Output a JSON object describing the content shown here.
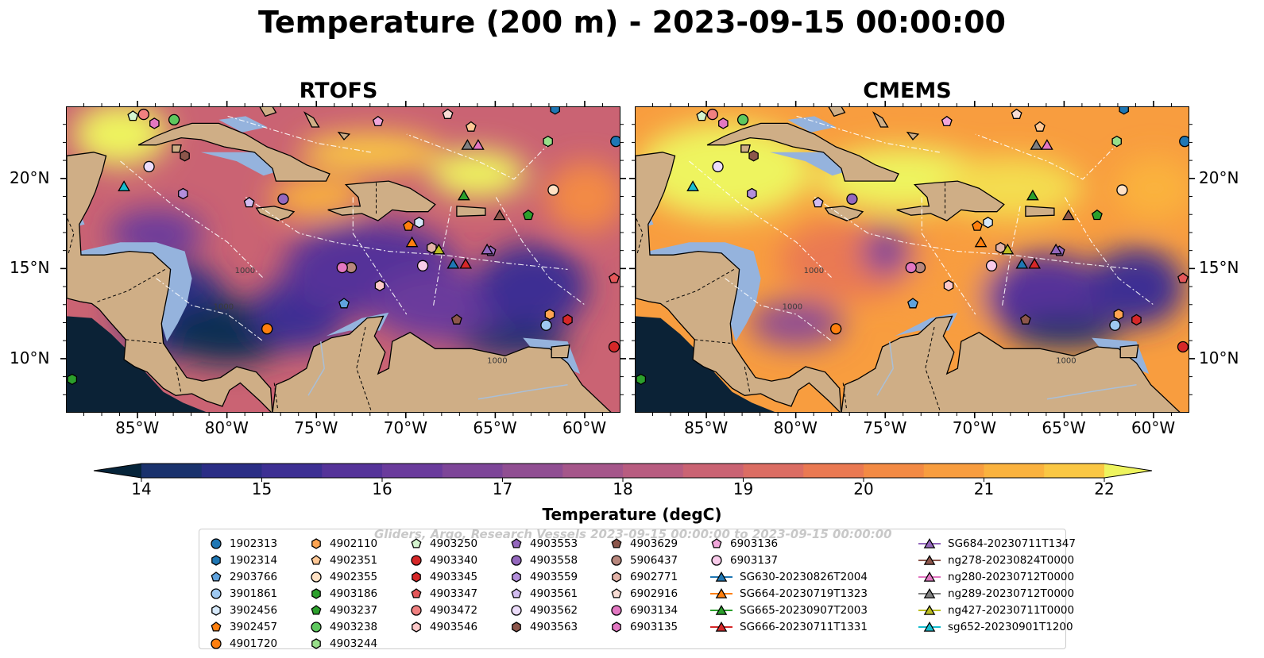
{
  "title": "Temperature (200 m) - 2023-09-15 00:00:00",
  "panels": [
    {
      "title": "RTOFS"
    },
    {
      "title": "CMEMS"
    }
  ],
  "axes": {
    "lon_ticks": [
      "85°W",
      "80°W",
      "75°W",
      "70°W",
      "65°W",
      "60°W"
    ],
    "lat_ticks": [
      "20°N",
      "15°N",
      "10°N"
    ]
  },
  "contour_labels": [
    "1000",
    "1000",
    "1000"
  ],
  "colorbar": {
    "label": "Temperature (degC)",
    "ticks": [
      "14",
      "15",
      "16",
      "17",
      "18",
      "19",
      "20",
      "21",
      "22"
    ],
    "vmin": 14,
    "vmax": 22,
    "colors": [
      "#06243a",
      "#0f2d52",
      "#1a326d",
      "#2a2d85",
      "#3d2f93",
      "#553399",
      "#6a3b9c",
      "#7d4598",
      "#904e92",
      "#a5568a",
      "#b85c80",
      "#ca6373",
      "#db6d63",
      "#ea7952",
      "#f38a44",
      "#f89d3f",
      "#fab23e",
      "#fac744",
      "#f4dd4f",
      "#eef45e"
    ]
  },
  "legend": {
    "watermark": "Gliders, Argo, Research Vessels 2023-09-15 00:00:00 to 2023-09-15 00:00:00",
    "items": [
      {
        "label": "1902313",
        "marker": "circle",
        "color": "#1f77b4"
      },
      {
        "label": "1902314",
        "marker": "hexagon",
        "color": "#1f77b4"
      },
      {
        "label": "2903766",
        "marker": "pentagon",
        "color": "#5fa2dd"
      },
      {
        "label": "3901861",
        "marker": "circle",
        "color": "#9ec9f2"
      },
      {
        "label": "3902456",
        "marker": "hexagon",
        "color": "#d6e9fb"
      },
      {
        "label": "3902457",
        "marker": "pentagon",
        "color": "#ff7f0e"
      },
      {
        "label": "4901720",
        "marker": "circle",
        "color": "#ff7f0e"
      },
      {
        "label": "4902110",
        "marker": "hexagon",
        "color": "#ffa552"
      },
      {
        "label": "4902351",
        "marker": "pentagon",
        "color": "#ffc896"
      },
      {
        "label": "4902355",
        "marker": "circle",
        "color": "#ffe1c4"
      },
      {
        "label": "4903186",
        "marker": "hexagon",
        "color": "#2ca02c"
      },
      {
        "label": "4903237",
        "marker": "pentagon",
        "color": "#2ca02c"
      },
      {
        "label": "4903238",
        "marker": "circle",
        "color": "#5ec85e"
      },
      {
        "label": "4903244",
        "marker": "hexagon",
        "color": "#98df8a"
      },
      {
        "label": "4903250",
        "marker": "pentagon",
        "color": "#d4f5cf"
      },
      {
        "label": "4903340",
        "marker": "circle",
        "color": "#d62728"
      },
      {
        "label": "4903345",
        "marker": "hexagon",
        "color": "#d62728"
      },
      {
        "label": "4903347",
        "marker": "pentagon",
        "color": "#e5575a"
      },
      {
        "label": "4903472",
        "marker": "circle",
        "color": "#f08080"
      },
      {
        "label": "4903546",
        "marker": "hexagon",
        "color": "#fcc8c8"
      },
      {
        "label": "4903553",
        "marker": "pentagon",
        "color": "#9467bd"
      },
      {
        "label": "4903558",
        "marker": "circle",
        "color": "#9467bd"
      },
      {
        "label": "4903559",
        "marker": "hexagon",
        "color": "#b38edb"
      },
      {
        "label": "4903561",
        "marker": "pentagon",
        "color": "#d2bcf0"
      },
      {
        "label": "4903562",
        "marker": "circle",
        "color": "#ecdcfa"
      },
      {
        "label": "4903563",
        "marker": "hexagon",
        "color": "#8c564b"
      },
      {
        "label": "4903629",
        "marker": "pentagon",
        "color": "#8c564b"
      },
      {
        "label": "5906437",
        "marker": "circle",
        "color": "#b8877d"
      },
      {
        "label": "6902771",
        "marker": "hexagon",
        "color": "#e3b3a8"
      },
      {
        "label": "6902916",
        "marker": "pentagon",
        "color": "#f8dcd4"
      },
      {
        "label": "6903134",
        "marker": "circle",
        "color": "#e377c2"
      },
      {
        "label": "6903135",
        "marker": "hexagon",
        "color": "#e377c2"
      },
      {
        "label": "6903136",
        "marker": "pentagon",
        "color": "#f0a6da"
      },
      {
        "label": "6903137",
        "marker": "circle",
        "color": "#f9cbea"
      },
      {
        "label": "SG630-20230826T2004",
        "marker": "triangle",
        "color": "#1f77b4"
      },
      {
        "label": "SG664-20230719T1323",
        "marker": "triangle",
        "color": "#ff7f0e"
      },
      {
        "label": "SG665-20230907T2003",
        "marker": "triangle",
        "color": "#2ca02c"
      },
      {
        "label": "SG666-20230711T1331",
        "marker": "triangle",
        "color": "#d62728"
      },
      {
        "label": "SG684-20230711T1347",
        "marker": "triangle",
        "color": "#9467bd"
      },
      {
        "label": "ng278-20230824T0000",
        "marker": "triangle",
        "color": "#8c564b"
      },
      {
        "label": "ng280-20230712T0000",
        "marker": "triangle",
        "color": "#e377c2"
      },
      {
        "label": "ng289-20230712T0000",
        "marker": "triangle",
        "color": "#7f7f7f"
      },
      {
        "label": "ng427-20230711T0000",
        "marker": "triangle",
        "color": "#bcbd22"
      },
      {
        "label": "sg652-20230901T1200",
        "marker": "triangle",
        "color": "#17becf"
      }
    ]
  },
  "platforms": [
    {
      "id": "1902313",
      "lon": -58.3,
      "lat": 22.1
    },
    {
      "id": "1902314",
      "lon": -61.7,
      "lat": 23.9
    },
    {
      "id": "2903766",
      "lon": -73.5,
      "lat": 13.1
    },
    {
      "id": "3901861",
      "lon": -62.2,
      "lat": 11.9
    },
    {
      "id": "3902456",
      "lon": -69.3,
      "lat": 17.6
    },
    {
      "id": "3902457",
      "lon": -69.9,
      "lat": 17.4
    },
    {
      "id": "4901720",
      "lon": -77.8,
      "lat": 11.7
    },
    {
      "id": "4902110",
      "lon": -62.0,
      "lat": 12.5
    },
    {
      "id": "4902351",
      "lon": -66.4,
      "lat": 22.9
    },
    {
      "id": "4902355",
      "lon": -61.8,
      "lat": 19.4
    },
    {
      "id": "4903186",
      "lon": -88.7,
      "lat": 8.9
    },
    {
      "id": "4903237",
      "lon": -63.2,
      "lat": 18.0
    },
    {
      "id": "4903238",
      "lon": -83.0,
      "lat": 23.3
    },
    {
      "id": "4903244",
      "lon": -62.1,
      "lat": 22.1
    },
    {
      "id": "4903250",
      "lon": -85.3,
      "lat": 23.5
    },
    {
      "id": "4903340",
      "lon": -58.4,
      "lat": 10.7
    },
    {
      "id": "4903345",
      "lon": -61.0,
      "lat": 12.2
    },
    {
      "id": "4903347",
      "lon": -58.4,
      "lat": 14.5
    },
    {
      "id": "4903472",
      "lon": -84.7,
      "lat": 23.6
    },
    {
      "id": "4903546",
      "lon": -71.5,
      "lat": 14.1
    },
    {
      "id": "4903553",
      "lon": -65.3,
      "lat": 16.0
    },
    {
      "id": "4903558",
      "lon": -76.9,
      "lat": 18.9
    },
    {
      "id": "4903559",
      "lon": -82.5,
      "lat": 19.2
    },
    {
      "id": "4903561",
      "lon": -78.8,
      "lat": 18.7
    },
    {
      "id": "4903562",
      "lon": -84.4,
      "lat": 20.7
    },
    {
      "id": "4903563",
      "lon": -82.4,
      "lat": 21.3
    },
    {
      "id": "4903629",
      "lon": -67.2,
      "lat": 12.2
    },
    {
      "id": "5906437",
      "lon": -73.1,
      "lat": 15.1
    },
    {
      "id": "6902771",
      "lon": -68.6,
      "lat": 16.2
    },
    {
      "id": "6902916",
      "lon": -67.7,
      "lat": 23.6
    },
    {
      "id": "6903134",
      "lon": -73.6,
      "lat": 15.1
    },
    {
      "id": "6903135",
      "lon": -84.1,
      "lat": 23.1
    },
    {
      "id": "6903136",
      "lon": -71.6,
      "lat": 23.2
    },
    {
      "id": "6903137",
      "lon": -69.1,
      "lat": 15.2
    },
    {
      "id": "SG630-20230826T2004",
      "lon": -67.4,
      "lat": 15.3
    },
    {
      "id": "SG664-20230719T1323",
      "lon": -69.7,
      "lat": 16.5
    },
    {
      "id": "SG665-20230907T2003",
      "lon": -66.8,
      "lat": 19.1
    },
    {
      "id": "SG666-20230711T1331",
      "lon": -66.7,
      "lat": 15.3
    },
    {
      "id": "SG684-20230711T1347",
      "lon": -65.5,
      "lat": 16.1
    },
    {
      "id": "ng278-20230824T0000",
      "lon": -64.8,
      "lat": 18.0
    },
    {
      "id": "ng280-20230712T0000",
      "lon": -66.0,
      "lat": 21.9
    },
    {
      "id": "ng289-20230712T0000",
      "lon": -66.6,
      "lat": 21.9
    },
    {
      "id": "ng427-20230711T0000",
      "lon": -68.2,
      "lat": 16.1
    },
    {
      "id": "sg652-20230901T1200",
      "lon": -85.8,
      "lat": 19.6
    }
  ]
}
